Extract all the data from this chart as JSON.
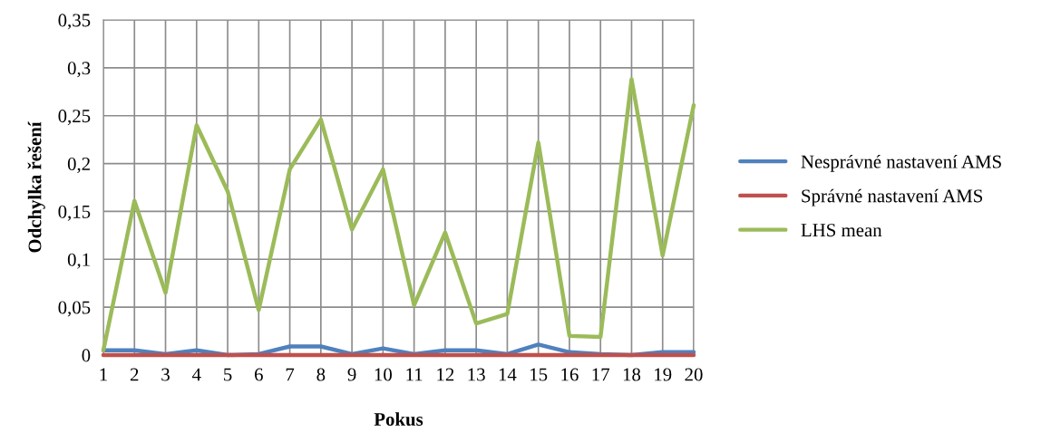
{
  "chart_data": {
    "type": "line",
    "xlabel": "Pokus",
    "ylabel": "Odchylka řešení",
    "categories": [
      "1",
      "2",
      "3",
      "4",
      "5",
      "6",
      "7",
      "8",
      "9",
      "10",
      "11",
      "12",
      "13",
      "14",
      "15",
      "16",
      "17",
      "18",
      "19",
      "20"
    ],
    "series": [
      {
        "name": "Nesprávné nastavení AMS",
        "color": "#4f81bd",
        "values": [
          0.005,
          0.005,
          0.001,
          0.005,
          0,
          0.001,
          0.009,
          0.009,
          0.001,
          0.007,
          0.001,
          0.005,
          0.005,
          0.001,
          0.011,
          0.003,
          0.001,
          0,
          0.003,
          0.003
        ]
      },
      {
        "name": "Správné nastavení AMS",
        "color": "#c0504d",
        "values": [
          0,
          0,
          0,
          0,
          0,
          0,
          0,
          0,
          0,
          0,
          0,
          0,
          0,
          0,
          0,
          0,
          0,
          0,
          0,
          0
        ]
      },
      {
        "name": "LHS mean",
        "color": "#9bbb59",
        "values": [
          0.005,
          0.161,
          0.065,
          0.24,
          0.171,
          0.047,
          0.194,
          0.246,
          0.131,
          0.194,
          0.052,
          0.128,
          0.033,
          0.043,
          0.222,
          0.02,
          0.019,
          0.288,
          0.104,
          0.261
        ]
      }
    ],
    "ylim": [
      0,
      0.35
    ],
    "yticks": [
      {
        "value": 0,
        "label": "0"
      },
      {
        "value": 0.05,
        "label": "0,05"
      },
      {
        "value": 0.1,
        "label": "0,1"
      },
      {
        "value": 0.15,
        "label": "0,15"
      },
      {
        "value": 0.2,
        "label": "0,2"
      },
      {
        "value": 0.25,
        "label": "0,25"
      },
      {
        "value": 0.3,
        "label": "0,3"
      },
      {
        "value": 0.35,
        "label": "0,35"
      }
    ],
    "grid": true,
    "legend": "right",
    "marker": "none",
    "line_style": "solid"
  }
}
